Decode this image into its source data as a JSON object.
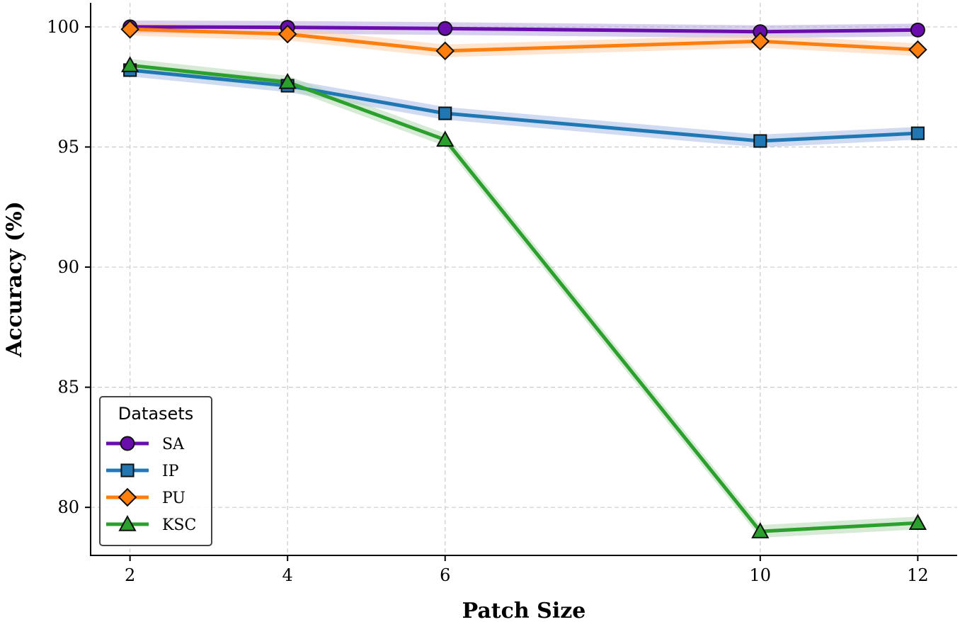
{
  "chart_data": {
    "type": "line",
    "xlabel": "Patch Size",
    "ylabel": "Accuracy (%)",
    "x": [
      2,
      4,
      6,
      10,
      12
    ],
    "xticks": [
      2,
      4,
      6,
      10,
      12
    ],
    "yticks": [
      80,
      85,
      90,
      95,
      100
    ],
    "xlim": [
      1.5,
      12.5
    ],
    "ylim": [
      78.0,
      101.0
    ],
    "grid": true,
    "legend": {
      "title": "Datasets",
      "placement": "lower-left"
    },
    "series": [
      {
        "name": "SA",
        "values": [
          100.0,
          99.98,
          99.93,
          99.8,
          99.87
        ],
        "color": "#6a0dad",
        "band_color": "#b8a6e0",
        "marker": "circle"
      },
      {
        "name": "IP",
        "values": [
          98.2,
          97.55,
          96.4,
          95.25,
          95.57
        ],
        "color": "#1f77b4",
        "band_color": "#aabde8",
        "marker": "square"
      },
      {
        "name": "PU",
        "values": [
          99.9,
          99.7,
          99.0,
          99.4,
          99.05
        ],
        "color": "#ff7f0e",
        "band_color": "#ffd0a8",
        "marker": "diamond"
      },
      {
        "name": "KSC",
        "values": [
          98.4,
          97.7,
          95.3,
          79.0,
          79.35
        ],
        "color": "#2ca02c",
        "band_color": "#b5d9b5",
        "marker": "triangle"
      }
    ]
  }
}
